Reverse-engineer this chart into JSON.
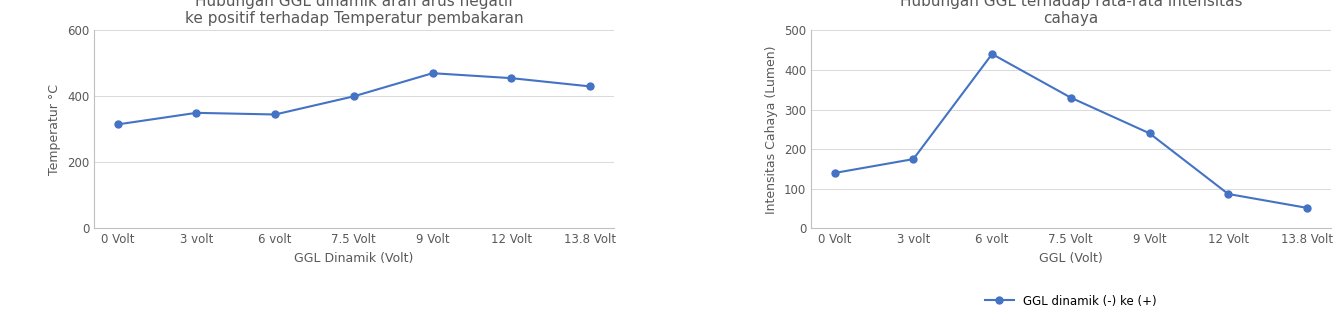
{
  "chart1": {
    "title": "Hubungan GGL dinamik arah arus negatif\nke positif terhadap Temperatur pembakaran",
    "xlabel": "GGL Dinamik (Volt)",
    "ylabel": "Temperatur °C",
    "x_labels": [
      "0 Volt",
      "3 volt",
      "6 volt",
      "7.5 Volt",
      "9 Volt",
      "12 Volt",
      "13.8 Volt"
    ],
    "y_values": [
      315,
      350,
      345,
      400,
      470,
      455,
      430
    ],
    "ylim": [
      0,
      600
    ],
    "yticks": [
      0,
      200,
      400,
      600
    ],
    "line_color": "#4472C4",
    "marker": "o",
    "marker_size": 5
  },
  "chart2": {
    "title": "Hubungan GGL terhadap rata-rata intensitas\ncahaya",
    "xlabel": "GGL (Volt)",
    "ylabel": "Intensitas Cahaya (Lumen)",
    "x_labels": [
      "0 Volt",
      "3 volt",
      "6 volt",
      "7.5 Volt",
      "9 Volt",
      "12 Volt",
      "13.8 Volt"
    ],
    "y_values": [
      140,
      175,
      440,
      330,
      240,
      87,
      52
    ],
    "ylim": [
      0,
      500
    ],
    "yticks": [
      0,
      100,
      200,
      300,
      400,
      500
    ],
    "line_color": "#4472C4",
    "marker": "o",
    "marker_size": 5,
    "legend_label": "GGL dinamik (-) ke (+)"
  },
  "background_color": "#ffffff",
  "title_fontsize": 11,
  "label_fontsize": 9,
  "tick_fontsize": 8.5
}
